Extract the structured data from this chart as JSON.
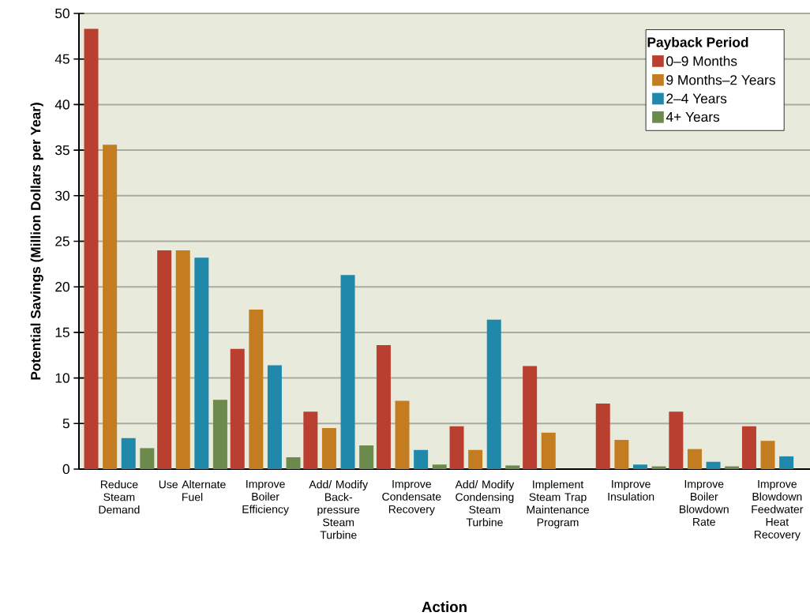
{
  "chart_data": {
    "type": "bar",
    "xlabel": "Action",
    "ylabel": "Potential Savings (Million Dollars per Year)",
    "legend_title": "Payback Period",
    "categories": [
      "Reduce Steam Demand",
      "Use Alternate Fuel",
      "Improve Boiler Efficiency",
      "Add/ Modify Back-pressure Steam Turbine",
      "Improve Condensate Recovery",
      "Add/ Modify Condensing Steam Turbine",
      "Implement Steam Trap Maintenance Program",
      "Improve Insulation",
      "Improve Boiler Blowdown Rate",
      "Improve Blowdown Feedwater Heat Recovery"
    ],
    "series": [
      {
        "name": "0–9 Months",
        "color": "#b94030",
        "values": [
          48.3,
          24,
          13.2,
          6.3,
          13.6,
          4.7,
          11.3,
          7.2,
          6.3,
          4.7
        ]
      },
      {
        "name": "9 Months–2 Years",
        "color": "#c47c20",
        "values": [
          35.6,
          24,
          17.5,
          4.5,
          7.5,
          2.1,
          4.0,
          3.2,
          2.2,
          3.1
        ]
      },
      {
        "name": "2–4 Years",
        "color": "#2088ab",
        "values": [
          3.4,
          23.2,
          11.4,
          21.3,
          2.1,
          16.4,
          null,
          0.5,
          0.8,
          1.4
        ]
      },
      {
        "name": "4+ Years",
        "color": "#6b8a4c",
        "values": [
          2.3,
          7.6,
          1.3,
          2.6,
          0.5,
          0.4,
          null,
          0.3,
          0.3,
          null
        ]
      }
    ],
    "ylim": [
      0,
      50
    ],
    "yticks": [
      0,
      5,
      10,
      15,
      20,
      25,
      30,
      35,
      40,
      45,
      50
    ],
    "grid": "y",
    "legend": "top right"
  }
}
